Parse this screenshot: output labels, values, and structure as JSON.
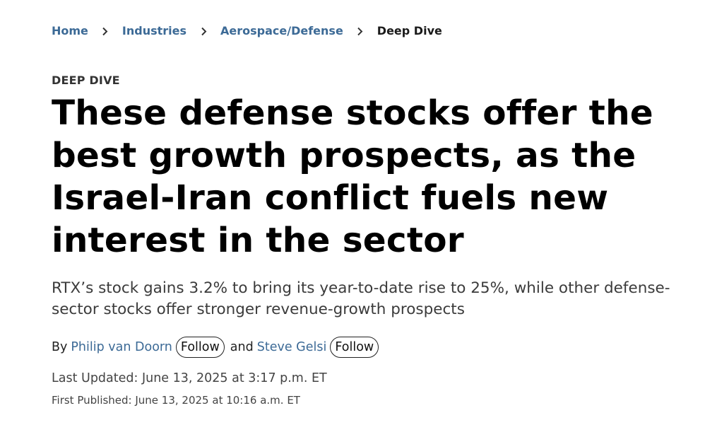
{
  "breadcrumb": {
    "items": [
      {
        "label": "Home"
      },
      {
        "label": "Industries"
      },
      {
        "label": "Aerospace/Defense"
      }
    ],
    "current": "Deep Dive",
    "separator_icon": "chevron-right-icon"
  },
  "article": {
    "kicker": "DEEP DIVE",
    "headline": "These defense stocks offer the best growth prospects, as the Israel-Iran conflict fuels new interest in the sector",
    "subheadline": "RTX’s stock gains 3.2% to bring its year-to-date rise to 25%, while other defense-sector stocks offer stronger revenue-growth prospects",
    "byline": {
      "prefix": "By",
      "authors": [
        {
          "name": "Philip van Doorn",
          "follow_label": "Follow"
        },
        {
          "name": "Steve Gelsi",
          "follow_label": "Follow"
        }
      ],
      "conjunction": "and"
    },
    "last_updated": "Last Updated: June 13, 2025 at 3:17 p.m. ET",
    "first_published": "First Published: June 13, 2025 at 10:16 a.m. ET"
  },
  "colors": {
    "link": "#3c6a96",
    "headline": "#000000",
    "subheadline": "#3b3b3b",
    "meta": "#444444"
  }
}
